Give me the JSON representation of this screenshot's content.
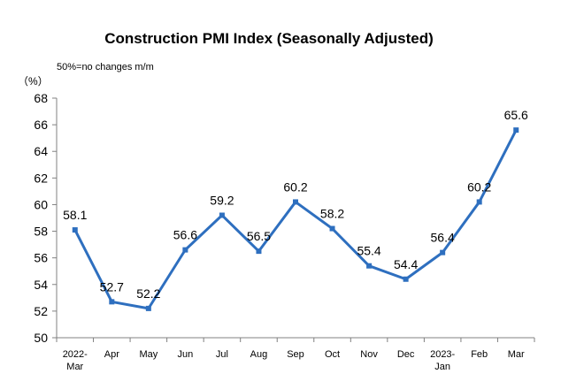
{
  "chart_data": {
    "type": "line",
    "title": "Construction PMI Index (Seasonally Adjusted)",
    "note": "50%=no changes m/m",
    "yunit": "（%）",
    "ylim": [
      50,
      68
    ],
    "yticks": [
      50,
      52,
      54,
      56,
      58,
      60,
      62,
      64,
      66,
      68
    ],
    "grid": false,
    "legend": "none",
    "categories": [
      [
        "2022-",
        "Mar"
      ],
      [
        "Apr"
      ],
      [
        "May"
      ],
      [
        "Jun"
      ],
      [
        "Jul"
      ],
      [
        "Aug"
      ],
      [
        "Sep"
      ],
      [
        "Oct"
      ],
      [
        "Nov"
      ],
      [
        "Dec"
      ],
      [
        "2023-",
        "Jan"
      ],
      [
        "Feb"
      ],
      [
        "Mar"
      ]
    ],
    "series": [
      {
        "values": [
          58.1,
          52.7,
          52.2,
          56.6,
          59.2,
          56.5,
          60.2,
          58.2,
          55.4,
          54.4,
          56.4,
          60.2,
          65.6
        ],
        "labels": [
          "58.1",
          "52.7",
          "52.2",
          "56.6",
          "59.2",
          "56.5",
          "60.2",
          "58.2",
          "55.4",
          "54.4",
          "56.4",
          "60.2",
          "65.6"
        ],
        "color": "#2e6fbf"
      }
    ]
  }
}
